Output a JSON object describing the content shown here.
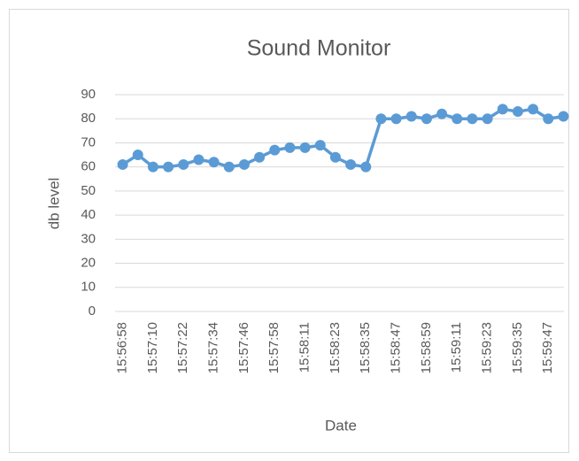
{
  "chart_data": {
    "type": "line",
    "title": "Sound Monitor",
    "x_label": "Date",
    "y_label": "db level",
    "categories": [
      "15:56:58",
      null,
      "15:57:10",
      null,
      "15:57:22",
      null,
      "15:57:34",
      null,
      "15:57:46",
      null,
      "15:57:58",
      null,
      "15:58:11",
      null,
      "15:58:23",
      null,
      "15:58:35",
      null,
      "15:58:47",
      null,
      "15:58:59",
      null,
      "15:59:11",
      null,
      "15:59:23",
      null,
      "15:59:35",
      null,
      "15:59:47",
      null
    ],
    "series": [
      {
        "name": "db level",
        "color": "#5b9bd5",
        "values": [
          61,
          65,
          60,
          60,
          61,
          63,
          62,
          60,
          61,
          64,
          67,
          68,
          68,
          69,
          64,
          61,
          60,
          80,
          80,
          81,
          80,
          82,
          80,
          80,
          80,
          84,
          83,
          84,
          80,
          81
        ]
      }
    ],
    "ylim": [
      0,
      90
    ],
    "yticks": [
      0,
      10,
      20,
      30,
      40,
      50,
      60,
      70,
      80,
      90
    ],
    "grid": true
  }
}
